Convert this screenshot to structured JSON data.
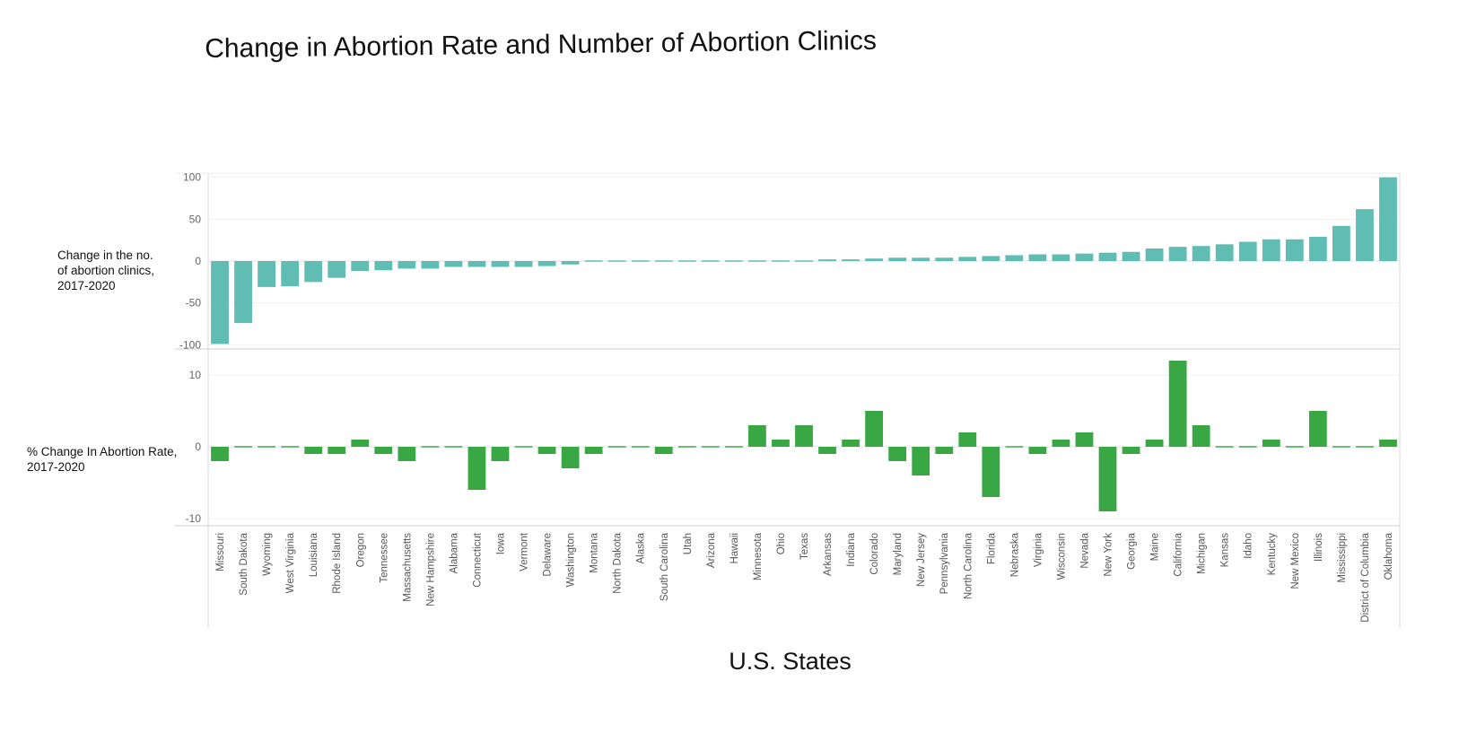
{
  "title": "Change in Abortion Rate and Number of Abortion Clinics",
  "xlabel": "U.S. States",
  "chart_data": [
    {
      "type": "bar",
      "ylabel": "Change in the no.\nof abortion clinics,\n2017-2020",
      "ylim": [
        -105,
        105
      ],
      "yticks": [
        100,
        50,
        0,
        -50,
        -100
      ],
      "grid": true,
      "color": "#5fbdb3",
      "categories": [
        "Missouri",
        "South Dakota",
        "Wyoming",
        "West Virginia",
        "Louisiana",
        "Rhode Island",
        "Oregon",
        "Tennessee",
        "Massachusetts",
        "New Hampshire",
        "Alabama",
        "Connecticut",
        "Iowa",
        "Vermont",
        "Delaware",
        "Washington",
        "Montana",
        "North Dakota",
        "Alaska",
        "South Carolina",
        "Utah",
        "Arizona",
        "Hawaii",
        "Minnesota",
        "Ohio",
        "Texas",
        "Arkansas",
        "Indiana",
        "Colorado",
        "Maryland",
        "New Jersey",
        "Pennsylvania",
        "North Carolina",
        "Florida",
        "Nebraska",
        "Virginia",
        "Wisconsin",
        "Nevada",
        "New York",
        "Georgia",
        "Maine",
        "California",
        "Michigan",
        "Kansas",
        "Idaho",
        "Kentucky",
        "New Mexico",
        "Illinois",
        "Mississippi",
        "District of Columbia",
        "Oklahoma"
      ],
      "values": [
        -99,
        -74,
        -31,
        -30,
        -25,
        -20,
        -12,
        -11,
        -9,
        -9,
        -7,
        -7,
        -7,
        -7,
        -6,
        -4,
        -1,
        -1,
        -1,
        -1,
        -1,
        1,
        1,
        1,
        1,
        1,
        2,
        2,
        3,
        4,
        4,
        4,
        5,
        6,
        7,
        8,
        8,
        9,
        10,
        11,
        15,
        17,
        18,
        20,
        23,
        26,
        26,
        29,
        42,
        62,
        100
      ]
    },
    {
      "type": "bar",
      "ylabel": "% Change In Abortion Rate,\n2017-2020",
      "ylim": [
        -11,
        13.5
      ],
      "yticks": [
        10,
        0,
        -10
      ],
      "grid": true,
      "color": "#3aa745",
      "categories": [
        "Missouri",
        "South Dakota",
        "Wyoming",
        "West Virginia",
        "Louisiana",
        "Rhode Island",
        "Oregon",
        "Tennessee",
        "Massachusetts",
        "New Hampshire",
        "Alabama",
        "Connecticut",
        "Iowa",
        "Vermont",
        "Delaware",
        "Washington",
        "Montana",
        "North Dakota",
        "Alaska",
        "South Carolina",
        "Utah",
        "Arizona",
        "Hawaii",
        "Minnesota",
        "Ohio",
        "Texas",
        "Arkansas",
        "Indiana",
        "Colorado",
        "Maryland",
        "New Jersey",
        "Pennsylvania",
        "North Carolina",
        "Florida",
        "Nebraska",
        "Virginia",
        "Wisconsin",
        "Nevada",
        "New York",
        "Georgia",
        "Maine",
        "California",
        "Michigan",
        "Kansas",
        "Idaho",
        "Kentucky",
        "New Mexico",
        "Illinois",
        "Mississippi",
        "District of Columbia",
        "Oklahoma"
      ],
      "values": [
        -2,
        0,
        0,
        0,
        -1,
        -1,
        1,
        -1,
        -2,
        0,
        0,
        -6,
        -2,
        0,
        -1,
        -3,
        -1,
        0,
        0,
        -1,
        0,
        0,
        0,
        3,
        1,
        3,
        -1,
        1,
        5,
        -2,
        -4,
        -1,
        2,
        -7,
        0,
        -1,
        1,
        2,
        -9,
        -1,
        1,
        12,
        3,
        0,
        0,
        1,
        0,
        5,
        0,
        0,
        1
      ]
    }
  ]
}
